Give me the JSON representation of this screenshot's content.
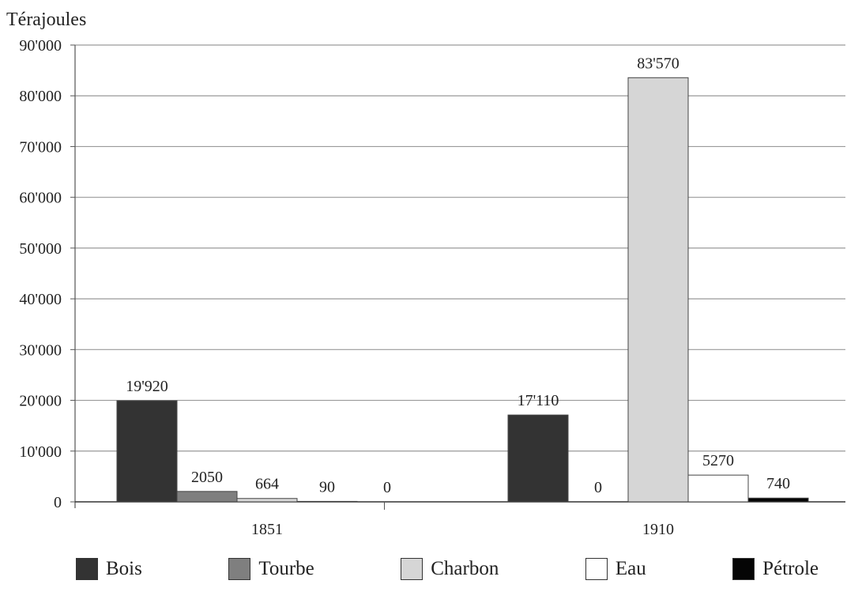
{
  "chart_data": {
    "type": "bar",
    "ylabel": "Térajoules",
    "categories": [
      "1851",
      "1910"
    ],
    "ylim": [
      0,
      90000
    ],
    "yticks": [
      0,
      10000,
      20000,
      30000,
      40000,
      50000,
      60000,
      70000,
      80000,
      90000
    ],
    "ytick_labels": [
      "0",
      "10'000",
      "20'000",
      "30'000",
      "40'000",
      "50'000",
      "60'000",
      "70'000",
      "80'000",
      "90'000"
    ],
    "grid": true,
    "legend_position": "bottom",
    "series": [
      {
        "name": "Bois",
        "color": "#333333",
        "values": [
          19920,
          17110
        ],
        "labels": [
          "19'920",
          "17'110"
        ]
      },
      {
        "name": "Tourbe",
        "color": "#7f7f7f",
        "values": [
          2050,
          0
        ],
        "labels": [
          "2050",
          "0"
        ]
      },
      {
        "name": "Charbon",
        "color": "#d6d6d6",
        "values": [
          664,
          83570
        ],
        "labels": [
          "664",
          "83'570"
        ]
      },
      {
        "name": "Eau",
        "color": "#ffffff",
        "values": [
          90,
          5270
        ],
        "labels": [
          "90",
          "5270"
        ]
      },
      {
        "name": "Pétrole",
        "color": "#050505",
        "values": [
          0,
          740
        ],
        "labels": [
          "0",
          "740"
        ]
      }
    ]
  }
}
